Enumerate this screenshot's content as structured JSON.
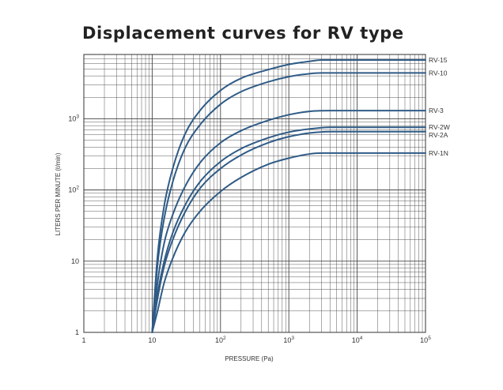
{
  "chart_data": {
    "type": "line",
    "title": "Displacement curves for RV type",
    "xlabel": "PRESSURE (Pa)",
    "ylabel": "LITERS PER MINUTE (ℓ/min)",
    "x_scale": "log",
    "y_scale": "log",
    "xlim": [
      1,
      100000
    ],
    "ylim": [
      1,
      8000
    ],
    "grid": true,
    "x_ticks": [
      {
        "base": "1",
        "exp": ""
      },
      {
        "base": "10",
        "exp": ""
      },
      {
        "base": "10",
        "exp": "2"
      },
      {
        "base": "10",
        "exp": "3"
      },
      {
        "base": "10",
        "exp": "4"
      },
      {
        "base": "10",
        "exp": "5"
      }
    ],
    "y_ticks": [
      {
        "base": "1",
        "exp": ""
      },
      {
        "base": "10",
        "exp": ""
      },
      {
        "base": "10",
        "exp": "2"
      },
      {
        "base": "10",
        "exp": "3"
      }
    ],
    "line_color": "#2f5b86",
    "series": [
      {
        "name": "RV-15",
        "points": [
          [
            10,
            1
          ],
          [
            12,
            12
          ],
          [
            15,
            60
          ],
          [
            20,
            200
          ],
          [
            30,
            600
          ],
          [
            50,
            1300
          ],
          [
            100,
            2500
          ],
          [
            200,
            3700
          ],
          [
            500,
            4900
          ],
          [
            1000,
            5800
          ],
          [
            2000,
            6400
          ],
          [
            3000,
            6700
          ],
          [
            100000,
            6700
          ]
        ]
      },
      {
        "name": "RV-10",
        "points": [
          [
            10,
            1
          ],
          [
            12,
            9
          ],
          [
            15,
            40
          ],
          [
            20,
            130
          ],
          [
            30,
            380
          ],
          [
            50,
            820
          ],
          [
            100,
            1600
          ],
          [
            200,
            2400
          ],
          [
            500,
            3300
          ],
          [
            1000,
            3900
          ],
          [
            2000,
            4300
          ],
          [
            3000,
            4400
          ],
          [
            100000,
            4400
          ]
        ]
      },
      {
        "name": "RV-3",
        "points": [
          [
            10,
            1
          ],
          [
            12,
            5
          ],
          [
            15,
            18
          ],
          [
            20,
            45
          ],
          [
            30,
            110
          ],
          [
            50,
            240
          ],
          [
            100,
            460
          ],
          [
            200,
            680
          ],
          [
            500,
            950
          ],
          [
            1000,
            1140
          ],
          [
            2000,
            1270
          ],
          [
            4000,
            1300
          ],
          [
            100000,
            1300
          ]
        ]
      },
      {
        "name": "RV-2W",
        "points": [
          [
            10,
            1
          ],
          [
            12,
            3.5
          ],
          [
            15,
            10
          ],
          [
            20,
            25
          ],
          [
            30,
            60
          ],
          [
            50,
            130
          ],
          [
            100,
            250
          ],
          [
            200,
            380
          ],
          [
            500,
            540
          ],
          [
            1000,
            650
          ],
          [
            2000,
            720
          ],
          [
            4000,
            760
          ],
          [
            100000,
            760
          ]
        ]
      },
      {
        "name": "RV-2A",
        "points": [
          [
            10,
            1
          ],
          [
            12,
            3
          ],
          [
            15,
            8.5
          ],
          [
            20,
            20
          ],
          [
            30,
            48
          ],
          [
            50,
            105
          ],
          [
            100,
            200
          ],
          [
            200,
            310
          ],
          [
            500,
            460
          ],
          [
            1000,
            560
          ],
          [
            2000,
            630
          ],
          [
            4000,
            660
          ],
          [
            100000,
            660
          ]
        ]
      },
      {
        "name": "RV-1N",
        "points": [
          [
            10,
            1
          ],
          [
            12,
            2
          ],
          [
            15,
            5
          ],
          [
            20,
            11
          ],
          [
            30,
            25
          ],
          [
            50,
            50
          ],
          [
            100,
            95
          ],
          [
            200,
            150
          ],
          [
            500,
            230
          ],
          [
            1000,
            280
          ],
          [
            2000,
            320
          ],
          [
            3000,
            330
          ],
          [
            100000,
            330
          ]
        ]
      }
    ]
  }
}
